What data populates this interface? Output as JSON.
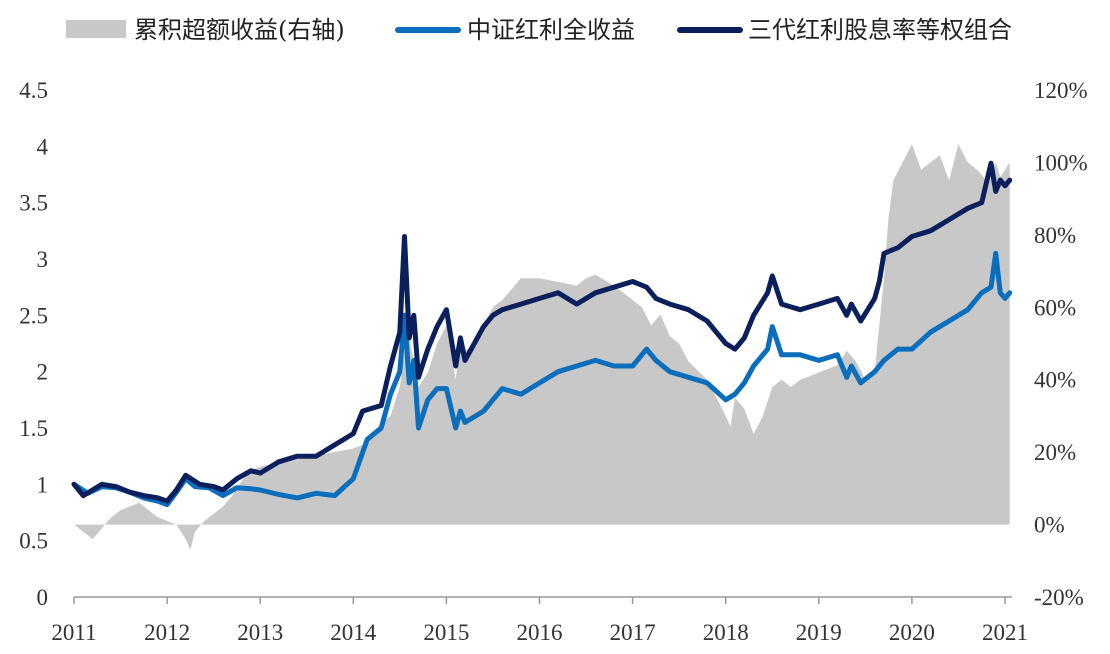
{
  "chart_data": {
    "type": "line",
    "title": "",
    "legend": [
      {
        "key": "excess",
        "label": "累积超额收益(右轴)",
        "color": "#c8c8c8",
        "kind": "area"
      },
      {
        "key": "csi",
        "label": "中证红利全收益",
        "color": "#0a6ebd",
        "kind": "line"
      },
      {
        "key": "portfolio",
        "label": "三代红利股息率等权组合",
        "color": "#0b1f5c",
        "kind": "line"
      }
    ],
    "legend_position": "top",
    "x_ticks": [
      "2011",
      "2012",
      "2013",
      "2014",
      "2015",
      "2016",
      "2017",
      "2018",
      "2019",
      "2020",
      "2021"
    ],
    "xlim": [
      2011.0,
      2021.0
    ],
    "y_left": {
      "ticks": [
        "0",
        "0.5",
        "1",
        "1.5",
        "2",
        "2.5",
        "3",
        "3.5",
        "4",
        "4.5"
      ],
      "lim": [
        0,
        4.5
      ]
    },
    "y_right": {
      "ticks": [
        "-20%",
        "0%",
        "20%",
        "40%",
        "60%",
        "80%",
        "100%",
        "120%"
      ],
      "lim": [
        -20,
        120
      ]
    },
    "series": [
      {
        "name": "中证红利全收益",
        "axis": "left",
        "x": [
          2011.0,
          2011.15,
          2011.3,
          2011.45,
          2011.6,
          2011.75,
          2011.9,
          2012.0,
          2012.1,
          2012.2,
          2012.3,
          2012.45,
          2012.6,
          2012.75,
          2012.9,
          2013.0,
          2013.2,
          2013.4,
          2013.6,
          2013.8,
          2014.0,
          2014.15,
          2014.3,
          2014.4,
          2014.5,
          2014.55,
          2014.6,
          2014.65,
          2014.7,
          2014.8,
          2014.9,
          2015.0,
          2015.1,
          2015.15,
          2015.2,
          2015.3,
          2015.4,
          2015.5,
          2015.6,
          2015.8,
          2016.0,
          2016.2,
          2016.4,
          2016.6,
          2016.8,
          2017.0,
          2017.15,
          2017.25,
          2017.4,
          2017.6,
          2017.8,
          2018.0,
          2018.1,
          2018.2,
          2018.3,
          2018.45,
          2018.5,
          2018.6,
          2018.8,
          2019.0,
          2019.2,
          2019.3,
          2019.35,
          2019.45,
          2019.6,
          2019.7,
          2019.85,
          2020.0,
          2020.2,
          2020.4,
          2020.6,
          2020.75,
          2020.85,
          2020.9,
          2020.95,
          2021.0,
          2021.05
        ],
        "values": [
          1.0,
          0.92,
          0.98,
          0.97,
          0.93,
          0.88,
          0.85,
          0.82,
          0.93,
          1.05,
          0.98,
          0.97,
          0.9,
          0.97,
          0.96,
          0.95,
          0.91,
          0.88,
          0.92,
          0.9,
          1.05,
          1.4,
          1.5,
          1.8,
          2.0,
          2.5,
          1.9,
          2.1,
          1.5,
          1.75,
          1.85,
          1.85,
          1.5,
          1.65,
          1.55,
          1.6,
          1.65,
          1.75,
          1.85,
          1.8,
          1.9,
          2.0,
          2.05,
          2.1,
          2.05,
          2.05,
          2.2,
          2.1,
          2.0,
          1.95,
          1.9,
          1.75,
          1.8,
          1.9,
          2.05,
          2.2,
          2.4,
          2.15,
          2.15,
          2.1,
          2.15,
          1.95,
          2.05,
          1.9,
          2.0,
          2.1,
          2.2,
          2.2,
          2.35,
          2.45,
          2.55,
          2.7,
          2.75,
          3.05,
          2.7,
          2.65,
          2.7
        ]
      },
      {
        "name": "三代红利股息率等权组合",
        "axis": "left",
        "x": [
          2011.0,
          2011.1,
          2011.3,
          2011.45,
          2011.6,
          2011.75,
          2011.9,
          2012.0,
          2012.1,
          2012.2,
          2012.35,
          2012.5,
          2012.6,
          2012.75,
          2012.9,
          2013.0,
          2013.2,
          2013.4,
          2013.6,
          2013.8,
          2014.0,
          2014.1,
          2014.3,
          2014.4,
          2014.5,
          2014.55,
          2014.6,
          2014.65,
          2014.7,
          2014.8,
          2014.9,
          2015.0,
          2015.1,
          2015.15,
          2015.2,
          2015.3,
          2015.4,
          2015.5,
          2015.6,
          2015.8,
          2016.0,
          2016.2,
          2016.4,
          2016.6,
          2016.8,
          2017.0,
          2017.15,
          2017.25,
          2017.4,
          2017.6,
          2017.8,
          2018.0,
          2018.1,
          2018.2,
          2018.3,
          2018.45,
          2018.5,
          2018.6,
          2018.8,
          2019.0,
          2019.2,
          2019.3,
          2019.35,
          2019.45,
          2019.6,
          2019.65,
          2019.7,
          2019.85,
          2020.0,
          2020.2,
          2020.4,
          2020.6,
          2020.75,
          2020.85,
          2020.9,
          2020.95,
          2021.0,
          2021.05
        ],
        "values": [
          1.0,
          0.9,
          1.0,
          0.98,
          0.93,
          0.9,
          0.88,
          0.85,
          0.95,
          1.08,
          1.0,
          0.98,
          0.95,
          1.05,
          1.12,
          1.1,
          1.2,
          1.25,
          1.25,
          1.35,
          1.45,
          1.65,
          1.7,
          2.05,
          2.35,
          3.2,
          2.3,
          2.5,
          1.95,
          2.2,
          2.4,
          2.55,
          2.05,
          2.3,
          2.1,
          2.25,
          2.4,
          2.5,
          2.55,
          2.6,
          2.65,
          2.7,
          2.6,
          2.7,
          2.75,
          2.8,
          2.75,
          2.65,
          2.6,
          2.55,
          2.45,
          2.25,
          2.2,
          2.3,
          2.5,
          2.7,
          2.85,
          2.6,
          2.55,
          2.6,
          2.65,
          2.5,
          2.6,
          2.45,
          2.65,
          2.8,
          3.05,
          3.1,
          3.2,
          3.25,
          3.35,
          3.45,
          3.5,
          3.85,
          3.6,
          3.7,
          3.65,
          3.7
        ]
      },
      {
        "name": "累积超额收益(右轴)",
        "axis": "right",
        "kind": "area",
        "x": [
          2011.0,
          2011.1,
          2011.2,
          2011.3,
          2011.4,
          2011.5,
          2011.6,
          2011.7,
          2011.8,
          2011.9,
          2012.0,
          2012.1,
          2012.2,
          2012.25,
          2012.3,
          2012.4,
          2012.5,
          2012.6,
          2012.7,
          2012.8,
          2012.9,
          2013.0,
          2013.2,
          2013.4,
          2013.6,
          2013.8,
          2014.0,
          2014.1,
          2014.2,
          2014.3,
          2014.4,
          2014.5,
          2014.55,
          2014.6,
          2014.65,
          2014.7,
          2014.8,
          2014.9,
          2015.0,
          2015.1,
          2015.15,
          2015.2,
          2015.3,
          2015.4,
          2015.5,
          2015.6,
          2015.7,
          2015.8,
          2016.0,
          2016.2,
          2016.4,
          2016.5,
          2016.6,
          2016.8,
          2017.0,
          2017.1,
          2017.2,
          2017.3,
          2017.4,
          2017.5,
          2017.6,
          2017.8,
          2017.9,
          2018.0,
          2018.05,
          2018.1,
          2018.2,
          2018.3,
          2018.4,
          2018.5,
          2018.6,
          2018.7,
          2018.8,
          2019.0,
          2019.2,
          2019.3,
          2019.4,
          2019.5,
          2019.6,
          2019.65,
          2019.7,
          2019.75,
          2019.8,
          2019.9,
          2020.0,
          2020.1,
          2020.2,
          2020.3,
          2020.4,
          2020.5,
          2020.6,
          2020.7,
          2020.8,
          2020.9,
          2020.95,
          2021.0,
          2021.05
        ],
        "values": [
          0,
          -2,
          -4,
          -1,
          2,
          4,
          5,
          6,
          4,
          2,
          1,
          0,
          -4,
          -7,
          -2,
          1,
          3,
          5,
          8,
          12,
          15,
          16,
          17,
          18,
          19,
          20,
          21,
          22,
          24,
          28,
          30,
          38,
          48,
          52,
          45,
          38,
          42,
          50,
          55,
          40,
          52,
          48,
          50,
          55,
          60,
          62,
          65,
          68,
          68,
          67,
          66,
          68,
          69,
          66,
          62,
          60,
          55,
          58,
          52,
          50,
          45,
          40,
          35,
          30,
          27,
          35,
          32,
          25,
          30,
          38,
          40,
          38,
          40,
          42,
          44,
          48,
          45,
          40,
          42,
          55,
          68,
          85,
          95,
          100,
          105,
          98,
          100,
          102,
          95,
          105,
          100,
          98,
          95,
          100,
          96,
          98,
          100
        ]
      }
    ]
  }
}
